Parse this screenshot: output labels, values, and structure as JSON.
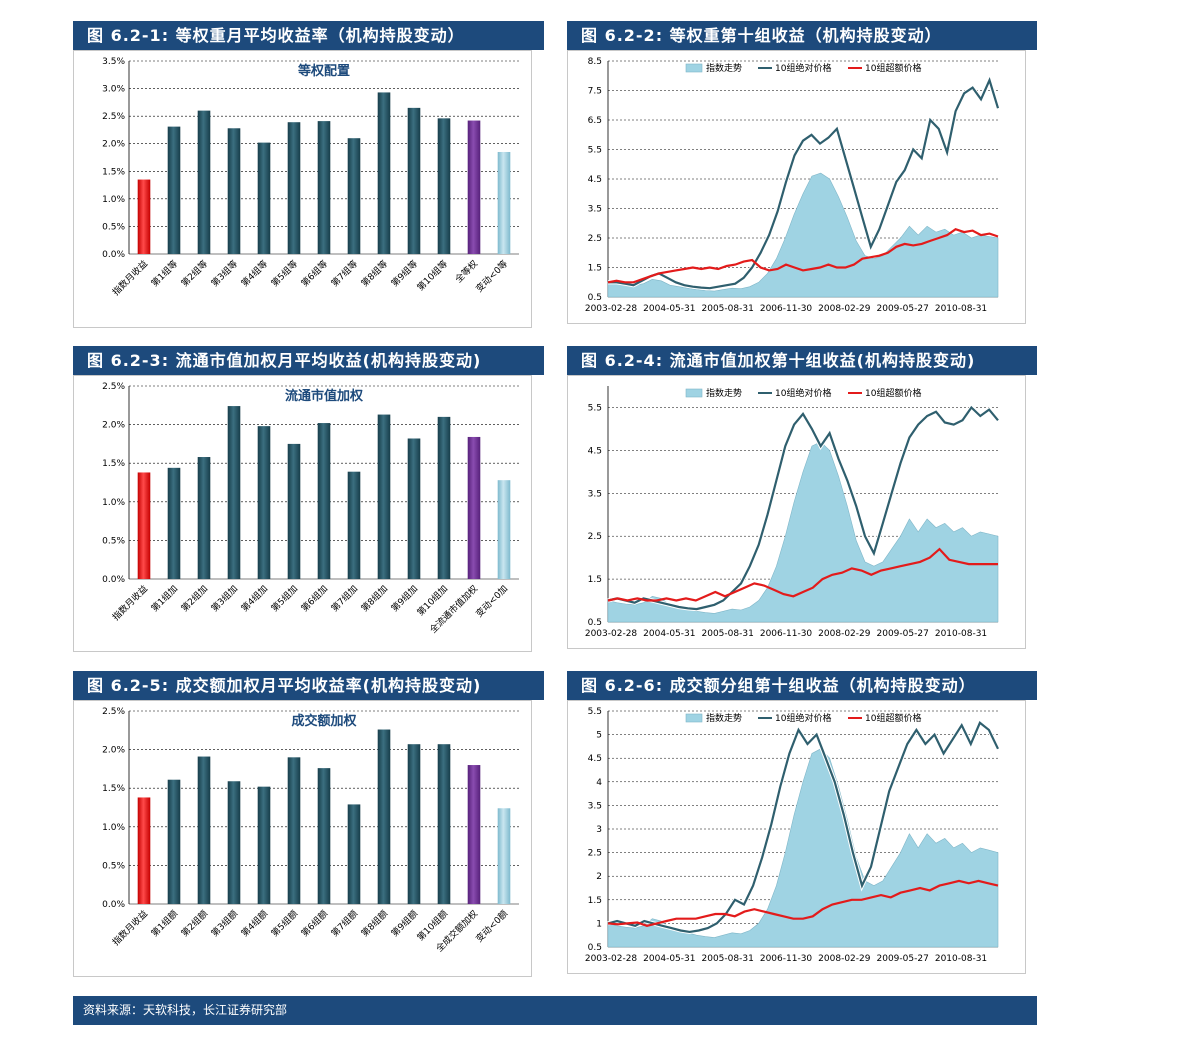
{
  "headers": {
    "h1": "图 6.2-1: 等权重月平均收益率（机构持股变动）",
    "h2": "图 6.2-2: 等权重第十组收益（机构持股变动）",
    "h3": "图 6.2-3: 流通市值加权月平均收益(机构持股变动)",
    "h4": "图 6.2-4: 流通市值加权第十组收益(机构持股变动)",
    "h5": "图 6.2-5: 成交额加权月平均收益率(机构持股变动)",
    "h6": "图 6.2-6: 成交额分组第十组收益（机构持股变动）"
  },
  "source_note": "资料来源：天软科技，长江证券研究部",
  "colors": {
    "header_bg": "#1d4a7c",
    "bar_dark": "#1f4e5e",
    "bar_red": "#e31b1b",
    "bar_purple": "#6b2f8f",
    "bar_light": "#8fc6d8",
    "area_fill": "#9fd3e3",
    "line_dark": "#2f5f6e",
    "line_red": "#e31b1b"
  },
  "chart_data": [
    {
      "type": "bar",
      "title": "等权配置",
      "categories": [
        "指数月收益",
        "第1组等",
        "第2组等",
        "第3组等",
        "第4组等",
        "第5组等",
        "第6组等",
        "第7组等",
        "第8组等",
        "第9组等",
        "第10组等",
        "全等权",
        "变动<0等"
      ],
      "values": [
        1.35,
        2.31,
        2.6,
        2.28,
        2.02,
        2.39,
        2.41,
        2.1,
        2.93,
        2.65,
        2.46,
        2.42,
        1.85
      ],
      "bar_colors": [
        "red",
        "dark",
        "dark",
        "dark",
        "dark",
        "dark",
        "dark",
        "dark",
        "dark",
        "dark",
        "dark",
        "purple",
        "light"
      ],
      "ylim": [
        0,
        3.5
      ],
      "yticks": [
        "0.0%",
        "0.5%",
        "1.0%",
        "1.5%",
        "2.0%",
        "2.5%",
        "3.0%",
        "3.5%"
      ],
      "ytick_values": [
        0,
        0.5,
        1.0,
        1.5,
        2.0,
        2.5,
        3.0,
        3.5
      ],
      "grid": true
    },
    {
      "type": "line",
      "legend": [
        "指数走势",
        "10组绝对价格",
        "10组超额价格"
      ],
      "legend_position": "top",
      "xticks": [
        "2003-02-28",
        "2004-05-31",
        "2005-08-31",
        "2006-11-30",
        "2008-02-29",
        "2009-05-27",
        "2010-08-31"
      ],
      "ylim": [
        0.5,
        8.5
      ],
      "yticks": [
        "0.5",
        "1.5",
        "2.5",
        "3.5",
        "4.5",
        "5.5",
        "6.5",
        "7.5",
        "8.5"
      ],
      "ytick_values": [
        0.5,
        1.5,
        2.5,
        3.5,
        4.5,
        5.5,
        6.5,
        7.5,
        8.5
      ],
      "series": [
        {
          "name": "指数走势",
          "kind": "area",
          "values": [
            1.0,
            0.95,
            0.92,
            0.9,
            0.95,
            1.1,
            1.05,
            0.9,
            0.85,
            0.8,
            0.75,
            0.72,
            0.7,
            0.75,
            0.8,
            0.78,
            0.85,
            1.0,
            1.3,
            1.8,
            2.5,
            3.3,
            4.0,
            4.6,
            4.7,
            4.5,
            3.9,
            3.2,
            2.4,
            1.9,
            1.8,
            1.9,
            2.2,
            2.5,
            2.9,
            2.6,
            2.9,
            2.7,
            2.8,
            2.6,
            2.7,
            2.5,
            2.6,
            2.55,
            2.5
          ]
        },
        {
          "name": "10组绝对价格",
          "kind": "line",
          "values": [
            1.0,
            1.0,
            0.95,
            0.9,
            1.05,
            1.2,
            1.3,
            1.15,
            1.0,
            0.9,
            0.85,
            0.82,
            0.8,
            0.85,
            0.9,
            0.95,
            1.15,
            1.5,
            2.0,
            2.6,
            3.4,
            4.4,
            5.3,
            5.8,
            6.0,
            5.7,
            5.9,
            6.2,
            5.2,
            4.2,
            3.2,
            2.2,
            2.8,
            3.6,
            4.4,
            4.8,
            5.5,
            5.2,
            6.5,
            6.2,
            5.4,
            6.8,
            7.4,
            7.6,
            7.2,
            7.85,
            6.9
          ]
        },
        {
          "name": "10组超额价格",
          "kind": "line",
          "values": [
            1.0,
            1.05,
            1.0,
            1.0,
            1.1,
            1.2,
            1.3,
            1.35,
            1.4,
            1.45,
            1.5,
            1.45,
            1.5,
            1.45,
            1.55,
            1.6,
            1.7,
            1.75,
            1.5,
            1.4,
            1.45,
            1.6,
            1.5,
            1.4,
            1.45,
            1.5,
            1.6,
            1.5,
            1.5,
            1.6,
            1.8,
            1.85,
            1.9,
            2.0,
            2.2,
            2.3,
            2.25,
            2.3,
            2.4,
            2.5,
            2.6,
            2.8,
            2.7,
            2.75,
            2.6,
            2.65,
            2.55
          ]
        }
      ]
    },
    {
      "type": "bar",
      "title": "流通市值加权",
      "categories": [
        "指数月收益",
        "第1组加",
        "第2组加",
        "第3组加",
        "第4组加",
        "第5组加",
        "第6组加",
        "第7组加",
        "第8组加",
        "第9组加",
        "第10组加",
        "全流通市值加权",
        "变动<0加"
      ],
      "values": [
        1.38,
        1.44,
        1.58,
        2.24,
        1.98,
        1.75,
        2.02,
        1.39,
        2.13,
        1.82,
        2.1,
        1.84,
        1.28
      ],
      "bar_colors": [
        "red",
        "dark",
        "dark",
        "dark",
        "dark",
        "dark",
        "dark",
        "dark",
        "dark",
        "dark",
        "dark",
        "purple",
        "light"
      ],
      "ylim": [
        0,
        2.5
      ],
      "yticks": [
        "0.0%",
        "0.5%",
        "1.0%",
        "1.5%",
        "2.0%",
        "2.5%"
      ],
      "ytick_values": [
        0,
        0.5,
        1.0,
        1.5,
        2.0,
        2.5
      ],
      "grid": true
    },
    {
      "type": "line",
      "legend": [
        "指数走势",
        "10组绝对价格",
        "10组超额价格"
      ],
      "legend_position": "top",
      "xticks": [
        "2003-02-28",
        "2004-05-31",
        "2005-08-31",
        "2006-11-30",
        "2008-02-29",
        "2009-05-27",
        "2010-08-31"
      ],
      "ylim": [
        0.5,
        6.0
      ],
      "yticks": [
        "0.5",
        "1.5",
        "2.5",
        "3.5",
        "4.5",
        "5.5"
      ],
      "ytick_values": [
        0.5,
        1.5,
        2.5,
        3.5,
        4.5,
        5.5
      ],
      "series": [
        {
          "name": "指数走势",
          "kind": "area",
          "values": [
            1.0,
            0.95,
            0.92,
            0.9,
            0.95,
            1.1,
            1.05,
            0.9,
            0.85,
            0.8,
            0.75,
            0.72,
            0.7,
            0.75,
            0.8,
            0.78,
            0.85,
            1.0,
            1.3,
            1.8,
            2.5,
            3.3,
            4.0,
            4.6,
            4.7,
            4.5,
            3.9,
            3.2,
            2.4,
            1.9,
            1.8,
            1.9,
            2.2,
            2.5,
            2.9,
            2.6,
            2.9,
            2.7,
            2.8,
            2.6,
            2.7,
            2.5,
            2.6,
            2.55,
            2.5
          ]
        },
        {
          "name": "10组绝对价格",
          "kind": "line",
          "values": [
            1.0,
            1.05,
            1.0,
            0.95,
            1.05,
            1.0,
            0.95,
            0.9,
            0.85,
            0.82,
            0.8,
            0.85,
            0.9,
            1.0,
            1.2,
            1.4,
            1.8,
            2.3,
            3.0,
            3.8,
            4.6,
            5.1,
            5.35,
            5.0,
            4.6,
            4.9,
            4.3,
            3.8,
            3.2,
            2.5,
            2.1,
            2.8,
            3.5,
            4.2,
            4.8,
            5.1,
            5.3,
            5.4,
            5.15,
            5.1,
            5.2,
            5.5,
            5.3,
            5.45,
            5.2
          ]
        },
        {
          "name": "10组超额价格",
          "kind": "line",
          "values": [
            1.0,
            1.05,
            1.0,
            1.05,
            1.0,
            1.0,
            1.05,
            1.0,
            1.05,
            1.0,
            1.1,
            1.2,
            1.1,
            1.2,
            1.3,
            1.4,
            1.35,
            1.25,
            1.15,
            1.1,
            1.2,
            1.3,
            1.5,
            1.6,
            1.65,
            1.75,
            1.7,
            1.6,
            1.7,
            1.75,
            1.8,
            1.85,
            1.9,
            2.0,
            2.2,
            1.95,
            1.9,
            1.85,
            1.85,
            1.85,
            1.85
          ]
        }
      ]
    },
    {
      "type": "bar",
      "title": "成交额加权",
      "categories": [
        "指数月收益",
        "第1组额",
        "第2组额",
        "第3组额",
        "第4组额",
        "第5组额",
        "第6组额",
        "第7组额",
        "第8组额",
        "第9组额",
        "第10组额",
        "全成交额加权",
        "变动<0额"
      ],
      "values": [
        1.38,
        1.61,
        1.91,
        1.59,
        1.52,
        1.9,
        1.76,
        1.29,
        2.26,
        2.07,
        2.07,
        1.8,
        1.24
      ],
      "bar_colors": [
        "red",
        "dark",
        "dark",
        "dark",
        "dark",
        "dark",
        "dark",
        "dark",
        "dark",
        "dark",
        "dark",
        "purple",
        "light"
      ],
      "ylim": [
        0,
        2.5
      ],
      "yticks": [
        "0.0%",
        "0.5%",
        "1.0%",
        "1.5%",
        "2.0%",
        "2.5%"
      ],
      "ytick_values": [
        0,
        0.5,
        1.0,
        1.5,
        2.0,
        2.5
      ],
      "grid": true
    },
    {
      "type": "line",
      "legend": [
        "指数走势",
        "10组绝对价格",
        "10组超额价格"
      ],
      "legend_position": "top",
      "xticks": [
        "2003-02-28",
        "2004-05-31",
        "2005-08-31",
        "2006-11-30",
        "2008-02-29",
        "2009-05-27",
        "2010-08-31"
      ],
      "ylim": [
        0.5,
        5.5
      ],
      "yticks": [
        "0.5",
        "1",
        "1.5",
        "2",
        "2.5",
        "3",
        "3.5",
        "4",
        "4.5",
        "5",
        "5.5"
      ],
      "ytick_values": [
        0.5,
        1.0,
        1.5,
        2.0,
        2.5,
        3.0,
        3.5,
        4.0,
        4.5,
        5.0,
        5.5
      ],
      "series": [
        {
          "name": "指数走势",
          "kind": "area",
          "values": [
            1.0,
            0.95,
            0.92,
            0.9,
            0.95,
            1.1,
            1.05,
            0.9,
            0.85,
            0.8,
            0.75,
            0.72,
            0.7,
            0.75,
            0.8,
            0.78,
            0.85,
            1.0,
            1.3,
            1.8,
            2.5,
            3.3,
            4.0,
            4.6,
            4.7,
            4.5,
            3.9,
            3.2,
            2.4,
            1.9,
            1.8,
            1.9,
            2.2,
            2.5,
            2.9,
            2.6,
            2.9,
            2.7,
            2.8,
            2.6,
            2.7,
            2.5,
            2.6,
            2.55,
            2.5
          ]
        },
        {
          "name": "10组绝对价格",
          "kind": "line",
          "values": [
            1.0,
            1.05,
            1.0,
            0.95,
            1.05,
            1.0,
            0.95,
            0.9,
            0.85,
            0.82,
            0.85,
            0.9,
            1.0,
            1.2,
            1.5,
            1.4,
            1.8,
            2.4,
            3.1,
            3.9,
            4.6,
            5.1,
            4.8,
            5.0,
            4.5,
            4.0,
            3.3,
            2.5,
            1.8,
            2.2,
            3.0,
            3.8,
            4.3,
            4.8,
            5.1,
            4.8,
            5.0,
            4.6,
            4.9,
            5.2,
            4.8,
            5.25,
            5.1,
            4.7
          ]
        },
        {
          "name": "10组超额价格",
          "kind": "line",
          "values": [
            1.0,
            0.98,
            1.0,
            1.02,
            0.95,
            1.0,
            1.05,
            1.1,
            1.1,
            1.1,
            1.15,
            1.2,
            1.2,
            1.15,
            1.25,
            1.3,
            1.25,
            1.2,
            1.15,
            1.1,
            1.1,
            1.15,
            1.3,
            1.4,
            1.45,
            1.5,
            1.5,
            1.55,
            1.6,
            1.55,
            1.65,
            1.7,
            1.75,
            1.7,
            1.8,
            1.85,
            1.9,
            1.85,
            1.9,
            1.85,
            1.8
          ]
        }
      ]
    }
  ]
}
